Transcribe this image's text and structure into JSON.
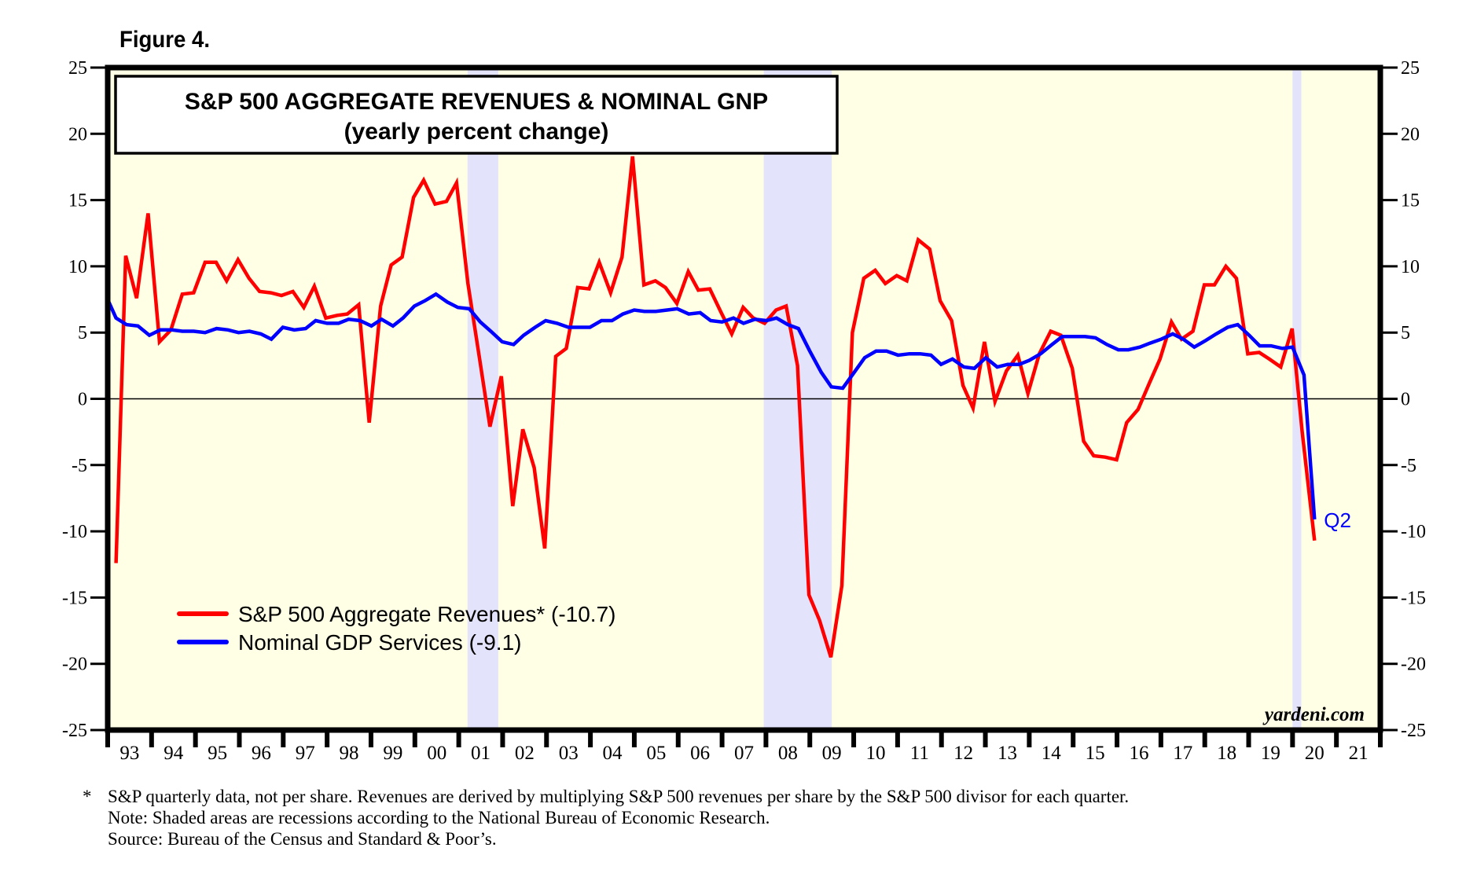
{
  "figure_label": "Figure 4.",
  "chart_data": {
    "type": "line",
    "title": "S&P 500 AGGREGATE REVENUES & NOMINAL GNP",
    "subtitle": "(yearly percent change)",
    "xlabel": "",
    "ylabel": "",
    "ylim": [
      -25,
      25
    ],
    "xlim": [
      1993,
      2022
    ],
    "yticks": [
      25,
      20,
      15,
      10,
      5,
      0,
      -5,
      -10,
      -15,
      -20,
      -25
    ],
    "ytick_labels": [
      "25",
      "20",
      "15",
      "10",
      "5",
      "0",
      "-5",
      "-10",
      "-15",
      "-20",
      "-25"
    ],
    "xtick_labels": [
      "93",
      "94",
      "95",
      "96",
      "97",
      "98",
      "99",
      "00",
      "01",
      "02",
      "03",
      "04",
      "05",
      "06",
      "07",
      "08",
      "09",
      "10",
      "11",
      "12",
      "13",
      "14",
      "15",
      "16",
      "17",
      "18",
      "19",
      "20",
      "21"
    ],
    "grid": false,
    "zero_line": true,
    "legend_position": "bottom-left",
    "background_color": "#ffffe5",
    "recession_color": "#e3e3fb",
    "recessions": [
      {
        "start": 2001.2,
        "end": 2001.9
      },
      {
        "start": 2007.95,
        "end": 2009.5
      },
      {
        "start": 2020.0,
        "end": 2020.2
      }
    ],
    "series": [
      {
        "name": "S&P 500 Aggregate Revenues* (-10.7)",
        "color": "#ff0000",
        "points": [
          [
            1993.19,
            -12.4
          ],
          [
            1993.41,
            10.8
          ],
          [
            1993.66,
            7.6
          ],
          [
            1993.92,
            14.0
          ],
          [
            1994.18,
            4.3
          ],
          [
            1994.44,
            5.2
          ],
          [
            1994.7,
            7.9
          ],
          [
            1994.96,
            8.0
          ],
          [
            1995.22,
            10.3
          ],
          [
            1995.47,
            10.3
          ],
          [
            1995.71,
            8.9
          ],
          [
            1995.97,
            10.5
          ],
          [
            1996.22,
            9.1
          ],
          [
            1996.46,
            8.1
          ],
          [
            1996.72,
            8.0
          ],
          [
            1996.96,
            7.8
          ],
          [
            1997.22,
            8.1
          ],
          [
            1997.47,
            6.9
          ],
          [
            1997.71,
            8.5
          ],
          [
            1997.97,
            6.1
          ],
          [
            1998.23,
            6.3
          ],
          [
            1998.46,
            6.4
          ],
          [
            1998.72,
            7.1
          ],
          [
            1998.96,
            -1.8
          ],
          [
            1999.22,
            7.0
          ],
          [
            1999.46,
            10.1
          ],
          [
            1999.71,
            10.7
          ],
          [
            1999.97,
            15.2
          ],
          [
            2000.2,
            16.5
          ],
          [
            2000.46,
            14.7
          ],
          [
            2000.72,
            14.9
          ],
          [
            2000.95,
            16.3
          ],
          [
            2001.21,
            8.7
          ],
          [
            2001.47,
            3.1
          ],
          [
            2001.71,
            -2.1
          ],
          [
            2001.97,
            1.7
          ],
          [
            2002.23,
            -8.1
          ],
          [
            2002.46,
            -2.3
          ],
          [
            2002.72,
            -5.2
          ],
          [
            2002.96,
            -11.3
          ],
          [
            2003.21,
            3.2
          ],
          [
            2003.45,
            3.8
          ],
          [
            2003.71,
            8.4
          ],
          [
            2003.97,
            8.3
          ],
          [
            2004.2,
            10.3
          ],
          [
            2004.46,
            8.0
          ],
          [
            2004.72,
            10.7
          ],
          [
            2004.96,
            18.3
          ],
          [
            2005.22,
            8.6
          ],
          [
            2005.48,
            8.9
          ],
          [
            2005.71,
            8.4
          ],
          [
            2005.97,
            7.2
          ],
          [
            2006.23,
            9.6
          ],
          [
            2006.46,
            8.2
          ],
          [
            2006.72,
            8.3
          ],
          [
            2006.98,
            6.5
          ],
          [
            2007.22,
            4.9
          ],
          [
            2007.48,
            6.9
          ],
          [
            2007.71,
            6.1
          ],
          [
            2007.97,
            5.7
          ],
          [
            2008.23,
            6.7
          ],
          [
            2008.46,
            7.0
          ],
          [
            2008.72,
            2.5
          ],
          [
            2008.98,
            -14.8
          ],
          [
            2009.22,
            -16.7
          ],
          [
            2009.48,
            -19.5
          ],
          [
            2009.73,
            -14.1
          ],
          [
            2009.97,
            5.0
          ],
          [
            2010.23,
            9.1
          ],
          [
            2010.49,
            9.7
          ],
          [
            2010.72,
            8.7
          ],
          [
            2010.98,
            9.3
          ],
          [
            2011.21,
            8.9
          ],
          [
            2011.47,
            12.0
          ],
          [
            2011.73,
            11.3
          ],
          [
            2011.97,
            7.4
          ],
          [
            2012.23,
            5.9
          ],
          [
            2012.49,
            1.0
          ],
          [
            2012.72,
            -0.7
          ],
          [
            2012.98,
            4.3
          ],
          [
            2013.22,
            -0.2
          ],
          [
            2013.48,
            2.1
          ],
          [
            2013.74,
            3.3
          ],
          [
            2013.97,
            0.4
          ],
          [
            2014.23,
            3.4
          ],
          [
            2014.49,
            5.1
          ],
          [
            2014.72,
            4.8
          ],
          [
            2014.98,
            2.3
          ],
          [
            2015.24,
            -3.2
          ],
          [
            2015.47,
            -4.3
          ],
          [
            2015.73,
            -4.4
          ],
          [
            2015.99,
            -4.6
          ],
          [
            2016.22,
            -1.8
          ],
          [
            2016.48,
            -0.8
          ],
          [
            2016.74,
            1.2
          ],
          [
            2016.98,
            3.0
          ],
          [
            2017.24,
            5.8
          ],
          [
            2017.47,
            4.5
          ],
          [
            2017.73,
            5.1
          ],
          [
            2017.99,
            8.6
          ],
          [
            2018.22,
            8.6
          ],
          [
            2018.48,
            10.0
          ],
          [
            2018.72,
            9.1
          ],
          [
            2018.98,
            3.4
          ],
          [
            2019.24,
            3.5
          ],
          [
            2019.47,
            3.0
          ],
          [
            2019.73,
            2.4
          ],
          [
            2019.99,
            5.3
          ],
          [
            2020.22,
            -2.5
          ],
          [
            2020.5,
            -10.7
          ]
        ]
      },
      {
        "name": "Nominal GDP Services (-9.1)",
        "color": "#0000ff",
        "points": [
          [
            1993.0,
            7.5
          ],
          [
            1993.19,
            6.1
          ],
          [
            1993.43,
            5.6
          ],
          [
            1993.69,
            5.5
          ],
          [
            1993.95,
            4.8
          ],
          [
            1994.2,
            5.2
          ],
          [
            1994.46,
            5.2
          ],
          [
            1994.7,
            5.1
          ],
          [
            1994.96,
            5.1
          ],
          [
            1995.22,
            5.0
          ],
          [
            1995.48,
            5.3
          ],
          [
            1995.74,
            5.2
          ],
          [
            1995.98,
            5.0
          ],
          [
            1996.23,
            5.1
          ],
          [
            1996.49,
            4.9
          ],
          [
            1996.73,
            4.5
          ],
          [
            1996.99,
            5.4
          ],
          [
            1997.25,
            5.2
          ],
          [
            1997.51,
            5.3
          ],
          [
            1997.74,
            5.9
          ],
          [
            1998.0,
            5.7
          ],
          [
            1998.26,
            5.7
          ],
          [
            1998.49,
            6.0
          ],
          [
            1998.75,
            5.9
          ],
          [
            1999.01,
            5.5
          ],
          [
            1999.24,
            6.0
          ],
          [
            1999.5,
            5.5
          ],
          [
            1999.73,
            6.1
          ],
          [
            1999.99,
            7.0
          ],
          [
            2000.23,
            7.4
          ],
          [
            2000.48,
            7.9
          ],
          [
            2000.74,
            7.3
          ],
          [
            2000.98,
            6.9
          ],
          [
            2001.24,
            6.8
          ],
          [
            2001.49,
            5.8
          ],
          [
            2001.73,
            5.1
          ],
          [
            2001.99,
            4.3
          ],
          [
            2002.25,
            4.1
          ],
          [
            2002.48,
            4.8
          ],
          [
            2002.74,
            5.4
          ],
          [
            2002.98,
            5.9
          ],
          [
            2003.24,
            5.7
          ],
          [
            2003.5,
            5.4
          ],
          [
            2003.73,
            5.4
          ],
          [
            2003.99,
            5.4
          ],
          [
            2004.25,
            5.9
          ],
          [
            2004.49,
            5.9
          ],
          [
            2004.74,
            6.4
          ],
          [
            2005.0,
            6.7
          ],
          [
            2005.23,
            6.6
          ],
          [
            2005.49,
            6.6
          ],
          [
            2005.75,
            6.7
          ],
          [
            2005.98,
            6.8
          ],
          [
            2006.24,
            6.4
          ],
          [
            2006.5,
            6.5
          ],
          [
            2006.74,
            5.9
          ],
          [
            2007.0,
            5.8
          ],
          [
            2007.26,
            6.1
          ],
          [
            2007.49,
            5.7
          ],
          [
            2007.75,
            6.0
          ],
          [
            2008.01,
            5.9
          ],
          [
            2008.24,
            6.1
          ],
          [
            2008.5,
            5.6
          ],
          [
            2008.74,
            5.3
          ],
          [
            2009.0,
            3.6
          ],
          [
            2009.26,
            2.0
          ],
          [
            2009.49,
            0.9
          ],
          [
            2009.75,
            0.8
          ],
          [
            2009.99,
            1.9
          ],
          [
            2010.25,
            3.1
          ],
          [
            2010.51,
            3.6
          ],
          [
            2010.75,
            3.6
          ],
          [
            2011.01,
            3.3
          ],
          [
            2011.27,
            3.4
          ],
          [
            2011.51,
            3.4
          ],
          [
            2011.76,
            3.3
          ],
          [
            2011.99,
            2.6
          ],
          [
            2012.25,
            3.0
          ],
          [
            2012.51,
            2.4
          ],
          [
            2012.75,
            2.3
          ],
          [
            2013.01,
            3.1
          ],
          [
            2013.27,
            2.4
          ],
          [
            2013.51,
            2.6
          ],
          [
            2013.77,
            2.6
          ],
          [
            2014.0,
            2.9
          ],
          [
            2014.26,
            3.4
          ],
          [
            2014.52,
            4.1
          ],
          [
            2014.75,
            4.7
          ],
          [
            2015.01,
            4.7
          ],
          [
            2015.27,
            4.7
          ],
          [
            2015.51,
            4.6
          ],
          [
            2015.77,
            4.1
          ],
          [
            2016.03,
            3.7
          ],
          [
            2016.26,
            3.7
          ],
          [
            2016.52,
            3.9
          ],
          [
            2016.75,
            4.2
          ],
          [
            2017.01,
            4.5
          ],
          [
            2017.27,
            4.9
          ],
          [
            2017.51,
            4.5
          ],
          [
            2017.76,
            3.9
          ],
          [
            2018.02,
            4.4
          ],
          [
            2018.26,
            4.9
          ],
          [
            2018.52,
            5.4
          ],
          [
            2018.75,
            5.6
          ],
          [
            2019.01,
            4.8
          ],
          [
            2019.25,
            4.0
          ],
          [
            2019.51,
            4.0
          ],
          [
            2019.77,
            3.8
          ],
          [
            2020.0,
            3.9
          ],
          [
            2020.26,
            1.8
          ],
          [
            2020.5,
            -9.1
          ]
        ]
      }
    ],
    "annotations": [
      {
        "text": "Q2",
        "x": 2020.5,
        "y": -9.1,
        "color": "#0000ff"
      }
    ],
    "credit": "yardeni.com"
  },
  "footnotes": [
    {
      "mark": "*",
      "text": "S&P quarterly data, not per share. Revenues are derived by multiplying S&P 500 revenues per share by the S&P 500 divisor for each quarter."
    },
    {
      "mark": "",
      "text": "Note: Shaded areas are recessions according to the National Bureau of Economic Research."
    },
    {
      "mark": "",
      "text": "Source: Bureau of the Census and Standard & Poor’s."
    }
  ]
}
